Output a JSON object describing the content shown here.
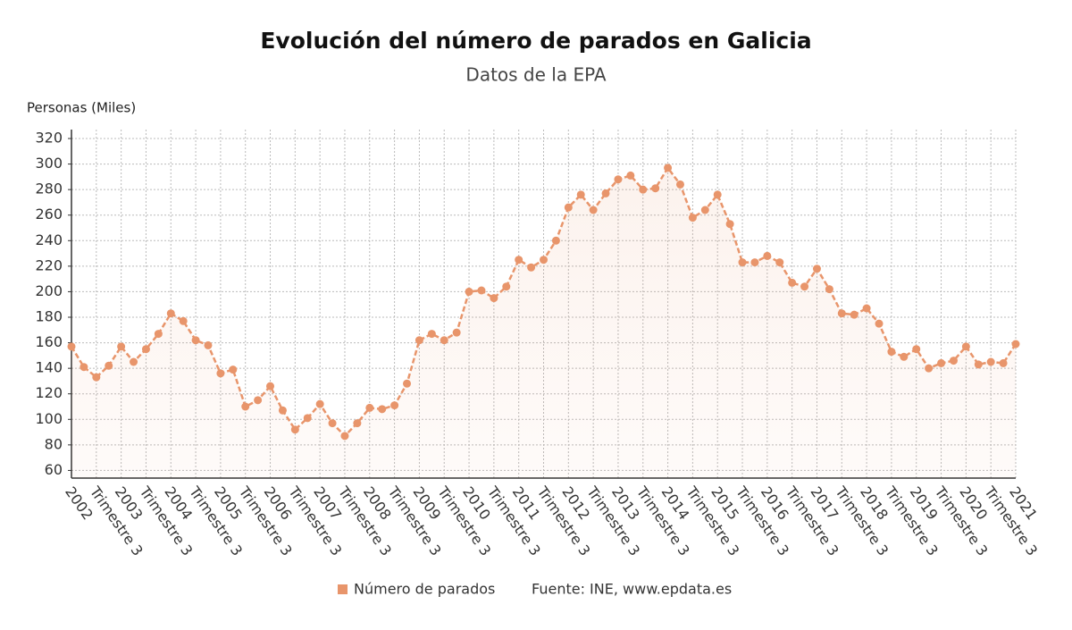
{
  "chart_data": {
    "type": "line",
    "title": "Evolución del número de parados en Galicia",
    "subtitle": "Datos de la EPA",
    "y_label": "Personas (Miles)",
    "source": "Fuente: INE, www.epdata.es",
    "categories": [
      "2002",
      null,
      "Trimestre 3",
      null,
      "2003",
      null,
      "Trimestre 3",
      null,
      "2004",
      null,
      "Trimestre 3",
      null,
      "2005",
      null,
      "Trimestre 3",
      null,
      "2006",
      null,
      "Trimestre 3",
      null,
      "2007",
      null,
      "Trimestre 3",
      null,
      "2008",
      null,
      "Trimestre 3",
      null,
      "2009",
      null,
      "Trimestre 3",
      null,
      "2010",
      null,
      "Trimestre 3",
      null,
      "2011",
      null,
      "Trimestre 3",
      null,
      "2012",
      null,
      "Trimestre 3",
      null,
      "2013",
      null,
      "Trimestre 3",
      null,
      "2014",
      null,
      "Trimestre 3",
      null,
      "2015",
      null,
      "Trimestre 3",
      null,
      "2016",
      null,
      "Trimestre 3",
      null,
      "2017",
      null,
      "Trimestre 3",
      null,
      "2018",
      null,
      "Trimestre 3",
      null,
      "2019",
      null,
      "Trimestre 3",
      null,
      "2020",
      null,
      "Trimestre 3",
      null,
      "2021"
    ],
    "series": [
      {
        "name": "Número de parados",
        "color": "#e8956b",
        "values": [
          157,
          141,
          133,
          142,
          157,
          145,
          155,
          167,
          183,
          177,
          162,
          158,
          136,
          139,
          110,
          115,
          126,
          107,
          92,
          101,
          112,
          97,
          87,
          97,
          109,
          108,
          111,
          128,
          162,
          167,
          162,
          168,
          200,
          201,
          195,
          204,
          225,
          219,
          225,
          240,
          266,
          276,
          264,
          277,
          288,
          291,
          280,
          281,
          297,
          284,
          258,
          264,
          276,
          253,
          223,
          223,
          228,
          223,
          207,
          204,
          218,
          202,
          183,
          182,
          187,
          175,
          153,
          149,
          155,
          140,
          144,
          146,
          157,
          143,
          145,
          144,
          159
        ]
      }
    ],
    "ylim": [
      54,
      327
    ],
    "yticks": [
      60,
      80,
      100,
      120,
      140,
      160,
      180,
      200,
      220,
      240,
      260,
      280,
      300,
      320
    ],
    "grid": true
  }
}
